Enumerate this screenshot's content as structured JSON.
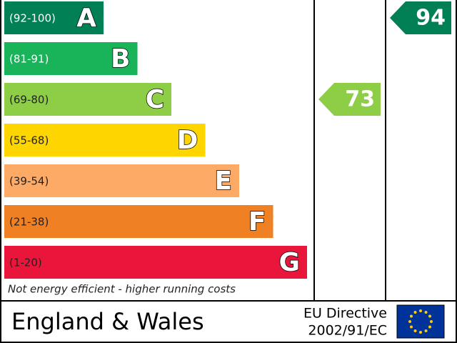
{
  "chart_data": {
    "type": "epc",
    "bands": [
      {
        "range": "(92-100)",
        "letter": "A",
        "color": "#008054",
        "text_color": "#ffffff"
      },
      {
        "range": "(81-91)",
        "letter": "B",
        "color": "#19b459",
        "text_color": "#ffffff"
      },
      {
        "range": "(69-80)",
        "letter": "C",
        "color": "#8dce46",
        "text_color": "#222222"
      },
      {
        "range": "(55-68)",
        "letter": "D",
        "color": "#ffd500",
        "text_color": "#222222"
      },
      {
        "range": "(39-54)",
        "letter": "E",
        "color": "#fcaa65",
        "text_color": "#222222"
      },
      {
        "range": "(21-38)",
        "letter": "F",
        "color": "#ef8023",
        "text_color": "#222222"
      },
      {
        "range": "(1-20)",
        "letter": "G",
        "color": "#e9153b",
        "text_color": "#222222"
      }
    ],
    "current": 73,
    "potential": 94,
    "note": "Not energy efficient - higher running costs",
    "region": "England & Wales",
    "directive": [
      "EU Directive",
      "2002/91/EC"
    ]
  }
}
